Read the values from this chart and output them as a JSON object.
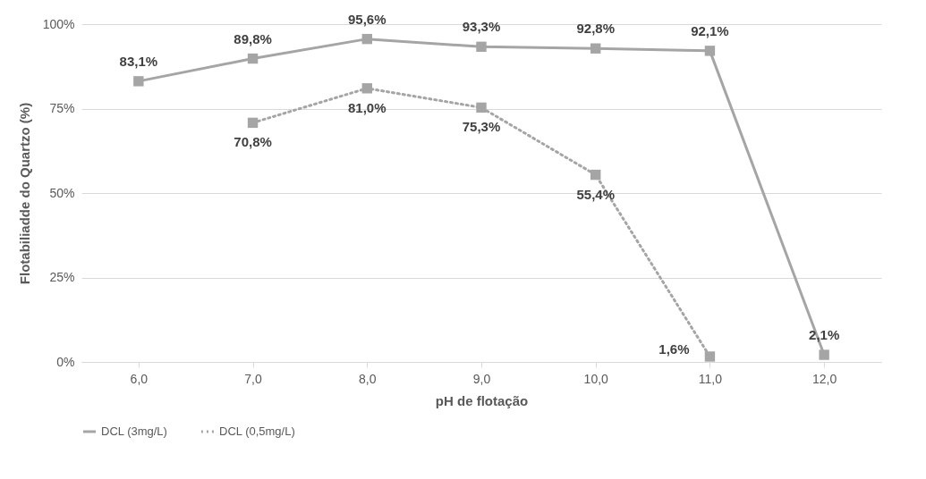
{
  "chart_data": {
    "type": "line",
    "xlabel": "pH de flotação",
    "ylabel": "Flotabiliadde do Quartzo (%)",
    "categories": [
      "6,0",
      "7,0",
      "8,0",
      "9,0",
      "10,0",
      "11,0",
      "12,0"
    ],
    "series": [
      {
        "name": "DCL (3mg/L)",
        "color": "#a5a5a5",
        "line_style": "solid",
        "values": [
          83.1,
          89.8,
          95.6,
          93.3,
          92.8,
          92.1,
          2.1
        ],
        "value_labels": [
          "83,1%",
          "89,8%",
          "95,6%",
          "93,3%",
          "92,8%",
          "92,1%",
          "2,1%"
        ]
      },
      {
        "name": "DCL (0,5mg/L)",
        "color": "#a5a5a5",
        "line_style": "dotted",
        "values": [
          null,
          70.8,
          81.0,
          75.3,
          55.4,
          1.6,
          null
        ],
        "value_labels": [
          null,
          "70,8%",
          "81,0%",
          "75,3%",
          "55,4%",
          "1,6%",
          null
        ]
      }
    ],
    "ylim": [
      0,
      100
    ],
    "yticks": [
      {
        "value": 0,
        "label": "0%"
      },
      {
        "value": 25,
        "label": "25%"
      },
      {
        "value": 50,
        "label": "50%"
      },
      {
        "value": 75,
        "label": "75%"
      },
      {
        "value": 100,
        "label": "100%"
      }
    ],
    "grid": "y",
    "legend": "bottom",
    "marker": "square"
  }
}
